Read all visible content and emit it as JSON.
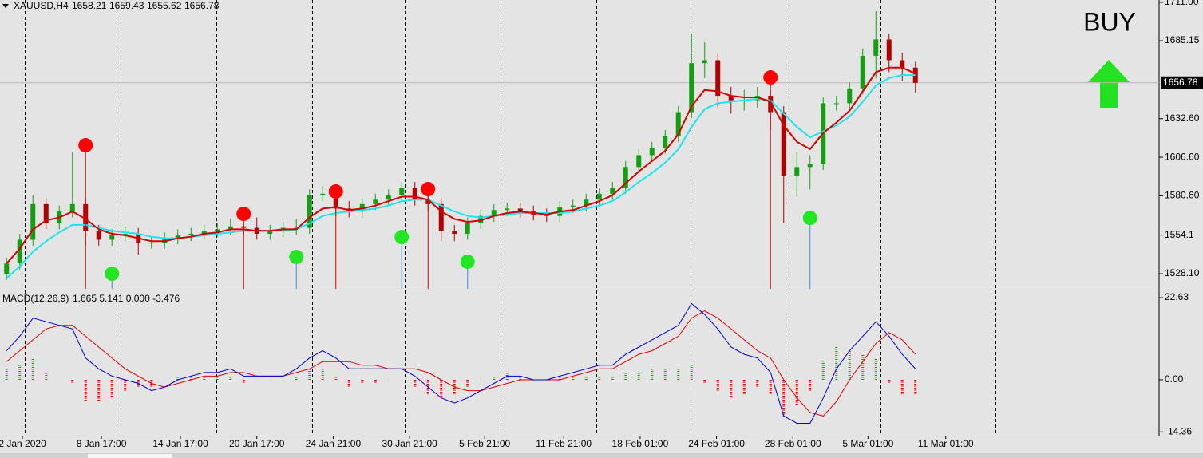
{
  "chart_data": [
    {
      "type": "candlestick",
      "title": "XAUUSD,H4",
      "quote": [
        1658.21,
        1659.43,
        1655.62,
        1656.78
      ],
      "annotation": "BUY",
      "annotation_color": "#22e222",
      "xlim": [
        0,
        88
      ],
      "ylim": [
        1517.9,
        1712.6
      ],
      "yticks": [
        {
          "value": 1711,
          "label": "1711.00"
        },
        1685.15,
        {
          "value": 1632.6,
          "label": "1632.60"
        },
        {
          "value": 1606.6,
          "label": "1606.60"
        },
        {
          "value": 1580.6,
          "label": "1580.60"
        },
        1554.1,
        {
          "value": 1528.1,
          "label": "1528.10"
        }
      ],
      "xticks": [
        {
          "value": 1.7,
          "label": "2 Jan 2020"
        },
        {
          "value": 7.7,
          "label": "8 Jan 17:00"
        },
        {
          "value": 13.7,
          "label": "14 Jan 17:00"
        },
        {
          "value": 19.5,
          "label": "20 Jan 17:00"
        },
        {
          "value": 25.3,
          "label": "24 Jan 21:00"
        },
        {
          "value": 31.1,
          "label": "30 Jan 21:00"
        },
        {
          "value": 36.8,
          "label": "5 Feb 21:00"
        },
        {
          "value": 42.8,
          "label": "11 Feb 21:00"
        },
        {
          "value": 48.6,
          "label": "18 Feb 01:00"
        },
        {
          "value": 54.4,
          "label": "24 Feb 01:00"
        },
        {
          "value": 60.2,
          "label": "28 Feb 01:00"
        },
        {
          "value": 65.9,
          "label": "5 Mar 01:00"
        },
        {
          "value": 71.8,
          "label": "11 Mar 01:00"
        }
      ],
      "current_price": 1656.78,
      "up_color": "#12a012",
      "down_color": "#b00000",
      "open": [
        1528,
        1535,
        1551,
        1575,
        1562,
        1570,
        1575,
        1557,
        1551,
        1554,
        1555,
        1549,
        1549,
        1552,
        1554,
        1555,
        1557,
        1558,
        1560,
        1559,
        1555,
        1557,
        1559,
        1559,
        1581,
        1582,
        1572,
        1570,
        1575,
        1578,
        1581,
        1586,
        1578,
        1575,
        1557,
        1555,
        1562,
        1567,
        1571,
        1572,
        1570,
        1568,
        1567,
        1573,
        1574,
        1578,
        1582,
        1586,
        1600,
        1608,
        1613,
        1621,
        1637,
        1670,
        1672,
        1648,
        1645,
        1645,
        1648,
        1637,
        1594,
        1600,
        1602,
        1643,
        1643,
        1653,
        1675,
        1686,
        1672,
        1667
      ],
      "high": [
        1539,
        1555,
        1581,
        1579,
        1574,
        1610,
        1579,
        1561,
        1558,
        1560,
        1559,
        1553,
        1556,
        1558,
        1559,
        1561,
        1562,
        1565,
        1564,
        1566,
        1561,
        1563,
        1565,
        1585,
        1587,
        1588,
        1577,
        1579,
        1582,
        1585,
        1590,
        1590,
        1583,
        1579,
        1561,
        1566,
        1571,
        1575,
        1576,
        1576,
        1574,
        1572,
        1577,
        1578,
        1582,
        1586,
        1590,
        1604,
        1612,
        1617,
        1625,
        1641,
        1690,
        1684,
        1676,
        1654,
        1652,
        1654,
        1652,
        1641,
        1610,
        1608,
        1647,
        1648,
        1657,
        1680,
        1705,
        1690,
        1677,
        1671
      ],
      "low": [
        1524,
        1531,
        1547,
        1558,
        1558,
        1566,
        1547,
        1547,
        1547,
        1550,
        1541,
        1545,
        1545,
        1548,
        1550,
        1551,
        1553,
        1554,
        1555,
        1551,
        1551,
        1553,
        1554,
        1555,
        1577,
        1567,
        1566,
        1566,
        1571,
        1574,
        1577,
        1574,
        1570,
        1550,
        1550,
        1551,
        1558,
        1563,
        1567,
        1566,
        1564,
        1563,
        1563,
        1569,
        1570,
        1574,
        1578,
        1582,
        1596,
        1604,
        1609,
        1617,
        1633,
        1660,
        1640,
        1636,
        1638,
        1640,
        1625,
        1562,
        1580,
        1585,
        1598,
        1638,
        1639,
        1649,
        1660,
        1664,
        1658,
        1650
      ],
      "close": [
        1535,
        1551,
        1575,
        1562,
        1570,
        1575,
        1557,
        1551,
        1554,
        1555,
        1549,
        1549,
        1552,
        1554,
        1555,
        1557,
        1558,
        1560,
        1559,
        1555,
        1557,
        1559,
        1559,
        1581,
        1582,
        1572,
        1570,
        1575,
        1578,
        1581,
        1586,
        1578,
        1575,
        1557,
        1555,
        1562,
        1567,
        1571,
        1572,
        1570,
        1568,
        1567,
        1573,
        1574,
        1578,
        1582,
        1586,
        1600,
        1608,
        1613,
        1621,
        1637,
        1670,
        1672,
        1648,
        1645,
        1645,
        1648,
        1637,
        1594,
        1600,
        1602,
        1643,
        1643,
        1653,
        1675,
        1686,
        1672,
        1667,
        1656.78
      ],
      "moving_averages": [
        {
          "color": "#1ee4ee",
          "values": [
            1525,
            1533,
            1543,
            1550,
            1556,
            1561,
            1561,
            1559,
            1557,
            1556,
            1555,
            1553,
            1552,
            1552,
            1553,
            1554,
            1555,
            1556,
            1557,
            1557,
            1557,
            1557,
            1558,
            1562,
            1567,
            1569,
            1570,
            1571,
            1572,
            1574,
            1577,
            1578,
            1578,
            1574,
            1570,
            1567,
            1566,
            1567,
            1568,
            1569,
            1569,
            1569,
            1569,
            1570,
            1572,
            1574,
            1577,
            1583,
            1590,
            1596,
            1603,
            1612,
            1627,
            1639,
            1643,
            1644,
            1645,
            1646,
            1645,
            1636,
            1627,
            1620,
            1624,
            1628,
            1634,
            1644,
            1655,
            1660,
            1662,
            1662
          ]
        },
        {
          "color": "#d00000",
          "values": [
            1535,
            1545,
            1558,
            1564,
            1566,
            1570,
            1565,
            1558,
            1555,
            1554,
            1552,
            1550,
            1550,
            1552,
            1553,
            1555,
            1556,
            1558,
            1558,
            1557,
            1557,
            1558,
            1558,
            1566,
            1572,
            1573,
            1571,
            1572,
            1574,
            1577,
            1580,
            1580,
            1578,
            1570,
            1565,
            1563,
            1564,
            1567,
            1569,
            1570,
            1569,
            1568,
            1570,
            1571,
            1574,
            1577,
            1581,
            1589,
            1597,
            1604,
            1611,
            1622,
            1641,
            1652,
            1651,
            1648,
            1647,
            1647,
            1644,
            1628,
            1617,
            1612,
            1623,
            1630,
            1638,
            1651,
            1664,
            1667,
            1667,
            1663
          ]
        }
      ],
      "sell_signals": {
        "color": "#ff0000",
        "stem_color": "#e00000",
        "x": [
          6,
          18,
          25,
          32,
          58
        ],
        "values": [
          1614.7,
          1568.4,
          1583.5,
          1585.1,
          1660.4
        ]
      },
      "buy_signals": {
        "color": "#22e622",
        "stem_color": "#3a8ee0",
        "x": [
          8,
          22,
          30,
          35,
          61
        ],
        "values": [
          1528.1,
          1539.4,
          1552.8,
          1536.2,
          1565.7
        ]
      }
    },
    {
      "type": "macd",
      "title": "MACD(12,26,9)",
      "readout": "1.665 5.141 0.000 -3.476",
      "xlim": [
        0,
        88
      ],
      "ylim": [
        -15.4,
        24.4
      ],
      "yticks": [
        22.63,
        {
          "value": 0,
          "label": "0.00"
        },
        -14.36
      ],
      "histogram": {
        "up_color": "#1c8c1c",
        "down_color": "#e00000",
        "values": [
          3,
          4,
          6,
          2,
          0,
          -1,
          -6,
          -6,
          -5,
          -3,
          -2,
          -2,
          0,
          1,
          1,
          1,
          1,
          1,
          -1,
          0,
          0,
          0,
          1,
          3,
          3,
          1,
          -2,
          -1,
          -1,
          0,
          0,
          -2,
          -4,
          -5,
          -4,
          -2,
          0,
          1,
          2,
          1,
          0,
          0,
          1,
          1,
          1,
          1,
          1,
          2,
          2,
          3,
          3,
          3,
          4,
          -1,
          -3,
          -5,
          -4,
          -2,
          -4,
          -10,
          -7,
          -3,
          5,
          9,
          8,
          7,
          6,
          -1,
          -4,
          -4
        ]
      },
      "macd": {
        "color": "#0000cc",
        "values": [
          8,
          12,
          17,
          16,
          15,
          14,
          6,
          3,
          1,
          0,
          -1,
          -3,
          -2,
          0,
          1,
          2,
          2,
          3,
          1,
          1,
          1,
          1,
          3,
          6,
          8,
          6,
          3,
          3,
          3,
          3,
          3,
          1,
          -2,
          -5,
          -6.4,
          -5,
          -3,
          -1,
          1,
          1,
          0,
          0,
          1,
          2,
          3,
          4,
          4,
          7,
          9,
          11,
          13,
          15,
          21,
          18,
          14,
          9,
          7,
          6,
          2,
          -10,
          -12,
          -12,
          -5,
          3,
          8,
          12,
          16,
          12,
          7,
          3
        ]
      },
      "signal": {
        "color": "#e00000",
        "values": [
          5,
          8,
          11,
          14,
          15,
          15,
          12,
          9,
          6,
          3,
          1,
          -1,
          -2,
          -1,
          0,
          1,
          1,
          2,
          2,
          1,
          1,
          1,
          2,
          3,
          5,
          5,
          5,
          4,
          4,
          3,
          3,
          3,
          2,
          0,
          -2,
          -3,
          -3,
          -2,
          -1,
          0,
          0,
          0,
          0,
          1,
          2,
          3,
          3,
          5,
          7,
          8,
          10,
          12,
          17,
          19,
          17,
          14,
          11,
          8,
          6,
          0,
          -5,
          -9,
          -10,
          -6,
          0,
          5,
          10,
          13,
          11,
          7
        ]
      }
    }
  ]
}
